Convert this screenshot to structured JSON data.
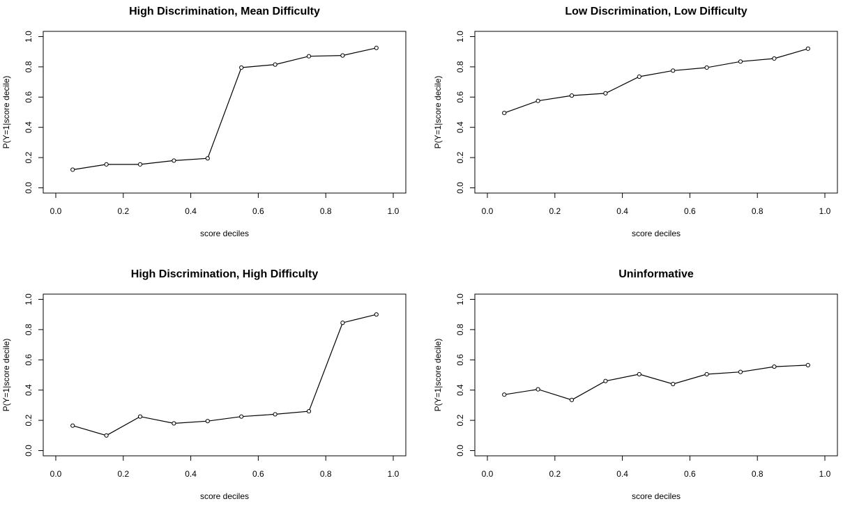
{
  "chart_data": [
    {
      "type": "line",
      "title": "High Discrimination, Mean Difficulty",
      "xlabel": "score deciles",
      "ylabel": "P(Y=1|score decile)",
      "xlim": [
        0,
        1
      ],
      "ylim": [
        0,
        1
      ],
      "xticks": [
        0.0,
        0.2,
        0.4,
        0.6,
        0.8,
        1.0
      ],
      "xtick_labels": [
        "0.0",
        "0.2",
        "0.4",
        "0.6",
        "0.8",
        "1.0"
      ],
      "yticks": [
        0.0,
        0.2,
        0.4,
        0.6,
        0.8,
        1.0
      ],
      "ytick_labels": [
        "0.0",
        "0.2",
        "0.4",
        "0.6",
        "0.8",
        "1.0"
      ],
      "grid": false,
      "x": [
        0.05,
        0.15,
        0.25,
        0.35,
        0.45,
        0.55,
        0.65,
        0.75,
        0.85,
        0.95
      ],
      "y": [
        0.12,
        0.155,
        0.155,
        0.18,
        0.195,
        0.795,
        0.815,
        0.87,
        0.875,
        0.925
      ]
    },
    {
      "type": "line",
      "title": "Low Discrimination, Low Difficulty",
      "xlabel": "score deciles",
      "ylabel": "P(Y=1|score decile)",
      "xlim": [
        0,
        1
      ],
      "ylim": [
        0,
        1
      ],
      "xticks": [
        0.0,
        0.2,
        0.4,
        0.6,
        0.8,
        1.0
      ],
      "xtick_labels": [
        "0.0",
        "0.2",
        "0.4",
        "0.6",
        "0.8",
        "1.0"
      ],
      "yticks": [
        0.0,
        0.2,
        0.4,
        0.6,
        0.8,
        1.0
      ],
      "ytick_labels": [
        "0.0",
        "0.2",
        "0.4",
        "0.6",
        "0.8",
        "1.0"
      ],
      "grid": false,
      "x": [
        0.05,
        0.15,
        0.25,
        0.35,
        0.45,
        0.55,
        0.65,
        0.75,
        0.85,
        0.95
      ],
      "y": [
        0.495,
        0.575,
        0.61,
        0.625,
        0.735,
        0.775,
        0.795,
        0.835,
        0.855,
        0.92
      ]
    },
    {
      "type": "line",
      "title": "High Discrimination, High Difficulty",
      "xlabel": "score deciles",
      "ylabel": "P(Y=1|score decile)",
      "xlim": [
        0,
        1
      ],
      "ylim": [
        0,
        1
      ],
      "xticks": [
        0.0,
        0.2,
        0.4,
        0.6,
        0.8,
        1.0
      ],
      "xtick_labels": [
        "0.0",
        "0.2",
        "0.4",
        "0.6",
        "0.8",
        "1.0"
      ],
      "yticks": [
        0.0,
        0.2,
        0.4,
        0.6,
        0.8,
        1.0
      ],
      "ytick_labels": [
        "0.0",
        "0.2",
        "0.4",
        "0.6",
        "0.8",
        "1.0"
      ],
      "grid": false,
      "x": [
        0.05,
        0.15,
        0.25,
        0.35,
        0.45,
        0.55,
        0.65,
        0.75,
        0.85,
        0.95
      ],
      "y": [
        0.165,
        0.1,
        0.225,
        0.18,
        0.195,
        0.225,
        0.24,
        0.26,
        0.845,
        0.9
      ]
    },
    {
      "type": "line",
      "title": "Uninformative",
      "xlabel": "score deciles",
      "ylabel": "P(Y=1|score decile)",
      "xlim": [
        0,
        1
      ],
      "ylim": [
        0,
        1
      ],
      "xticks": [
        0.0,
        0.2,
        0.4,
        0.6,
        0.8,
        1.0
      ],
      "xtick_labels": [
        "0.0",
        "0.2",
        "0.4",
        "0.6",
        "0.8",
        "1.0"
      ],
      "yticks": [
        0.0,
        0.2,
        0.4,
        0.6,
        0.8,
        1.0
      ],
      "ytick_labels": [
        "0.0",
        "0.2",
        "0.4",
        "0.6",
        "0.8",
        "1.0"
      ],
      "grid": false,
      "x": [
        0.05,
        0.15,
        0.25,
        0.35,
        0.45,
        0.55,
        0.65,
        0.75,
        0.85,
        0.95
      ],
      "y": [
        0.37,
        0.405,
        0.335,
        0.46,
        0.505,
        0.44,
        0.505,
        0.52,
        0.555,
        0.565
      ]
    }
  ]
}
